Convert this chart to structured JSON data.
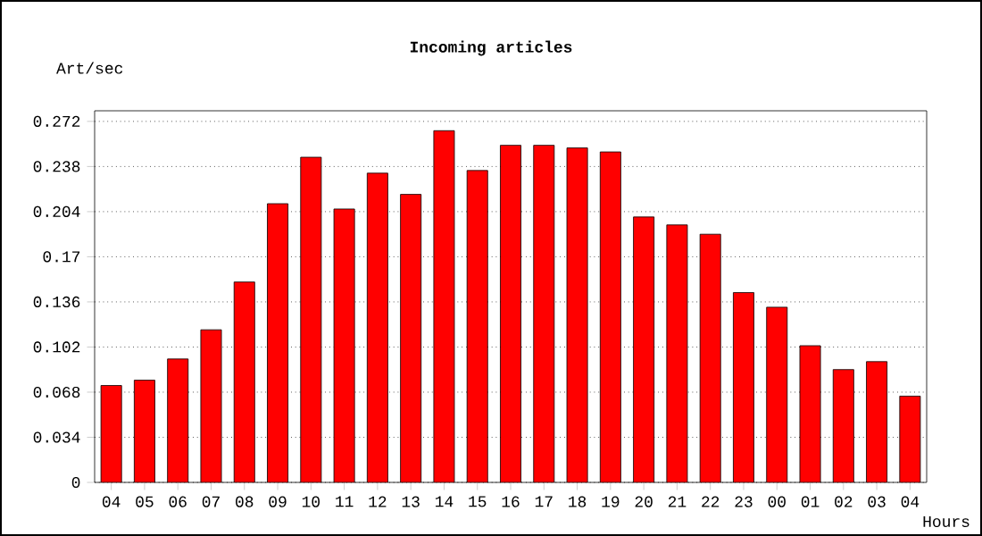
{
  "chart_data": {
    "type": "bar",
    "title": "Incoming articles",
    "ylabel": "Art/sec",
    "xlabel": "Hours",
    "categories": [
      "04",
      "05",
      "06",
      "07",
      "08",
      "09",
      "10",
      "11",
      "12",
      "13",
      "14",
      "15",
      "16",
      "17",
      "18",
      "19",
      "20",
      "21",
      "22",
      "23",
      "00",
      "01",
      "02",
      "03",
      "04"
    ],
    "values": [
      0.073,
      0.077,
      0.093,
      0.115,
      0.151,
      0.21,
      0.245,
      0.206,
      0.233,
      0.217,
      0.265,
      0.235,
      0.254,
      0.254,
      0.252,
      0.249,
      0.2,
      0.194,
      0.187,
      0.143,
      0.132,
      0.103,
      0.085,
      0.091,
      0.065
    ],
    "color": "#ff0000",
    "ylim": [
      0,
      0.28
    ],
    "yticks": [
      0,
      0.034,
      0.068,
      0.102,
      0.136,
      0.17,
      0.204,
      0.238,
      0.272
    ],
    "grid": "y"
  }
}
